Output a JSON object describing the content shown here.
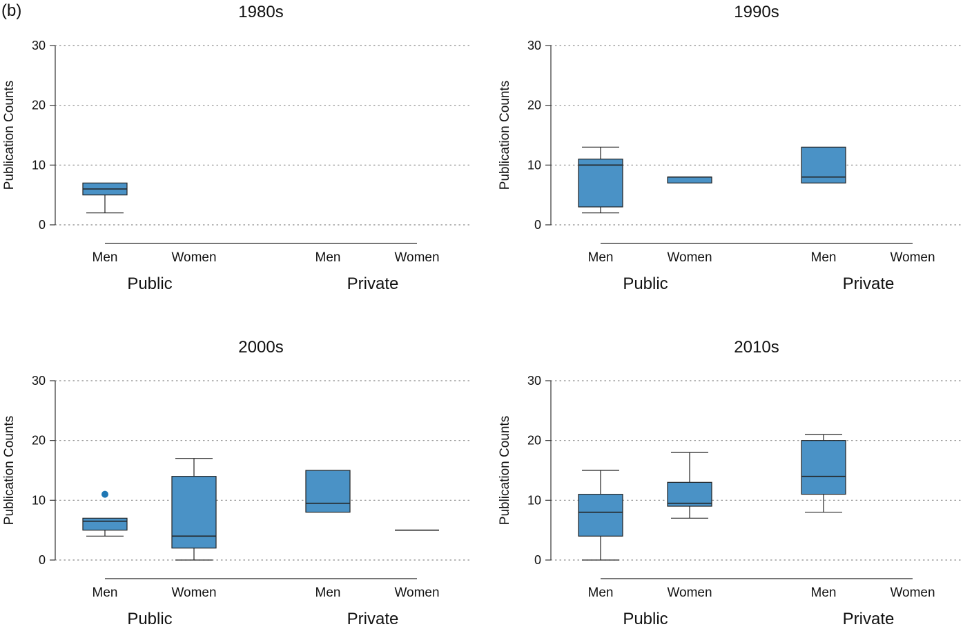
{
  "figure": {
    "panel_label": "(b)"
  },
  "style": {
    "box_fill": "#4a92c6",
    "box_stroke": "#222222",
    "outlier_color": "#1f77b4",
    "grid_color": "#888888",
    "axis_color": "#333333",
    "group_line_color": "#777777"
  },
  "chart_data": [
    {
      "type": "box",
      "title": "1980s",
      "ylabel": "Publication Counts",
      "ylim": [
        0,
        30
      ],
      "yticks": [
        0,
        10,
        20,
        30
      ],
      "grid": "horizontal dotted",
      "categories": [
        "Men",
        "Women",
        "Men",
        "Women"
      ],
      "groups": [
        "Public",
        "Private"
      ],
      "boxes": [
        {
          "category": "Men",
          "group": "Public",
          "whisker_low": 2,
          "q1": 5,
          "median": 6,
          "q3": 7,
          "whisker_high": 7,
          "outliers": []
        }
      ]
    },
    {
      "type": "box",
      "title": "1990s",
      "ylabel": "Publication Counts",
      "ylim": [
        0,
        30
      ],
      "yticks": [
        0,
        10,
        20,
        30
      ],
      "grid": "horizontal dotted",
      "categories": [
        "Men",
        "Women",
        "Men",
        "Women"
      ],
      "groups": [
        "Public",
        "Private"
      ],
      "boxes": [
        {
          "category": "Men",
          "group": "Public",
          "whisker_low": 2,
          "q1": 3,
          "median": 10,
          "q3": 11,
          "whisker_high": 13,
          "outliers": []
        },
        {
          "category": "Women",
          "group": "Public",
          "whisker_low": 7,
          "q1": 7,
          "median": 8,
          "q3": 8,
          "whisker_high": 8,
          "outliers": []
        },
        {
          "category": "Men",
          "group": "Private",
          "whisker_low": 7,
          "q1": 7,
          "median": 8,
          "q3": 13,
          "whisker_high": 13,
          "outliers": []
        }
      ]
    },
    {
      "type": "box",
      "title": "2000s",
      "ylabel": "Publication Counts",
      "ylim": [
        0,
        30
      ],
      "yticks": [
        0,
        10,
        20,
        30
      ],
      "grid": "horizontal dotted",
      "categories": [
        "Men",
        "Women",
        "Men",
        "Women"
      ],
      "groups": [
        "Public",
        "Private"
      ],
      "boxes": [
        {
          "category": "Men",
          "group": "Public",
          "whisker_low": 4,
          "q1": 5,
          "median": 6.5,
          "q3": 7,
          "whisker_high": 7,
          "outliers": [
            11
          ]
        },
        {
          "category": "Women",
          "group": "Public",
          "whisker_low": 0,
          "q1": 2,
          "median": 4,
          "q3": 14,
          "whisker_high": 17,
          "outliers": []
        },
        {
          "category": "Men",
          "group": "Private",
          "whisker_low": 8,
          "q1": 8,
          "median": 9.5,
          "q3": 15,
          "whisker_high": 15,
          "outliers": []
        },
        {
          "category": "Women",
          "group": "Private",
          "whisker_low": 5,
          "q1": 5,
          "median": 5,
          "q3": 5,
          "whisker_high": 5,
          "outliers": []
        }
      ]
    },
    {
      "type": "box",
      "title": "2010s",
      "ylabel": "Publication Counts",
      "ylim": [
        0,
        30
      ],
      "yticks": [
        0,
        10,
        20,
        30
      ],
      "grid": "horizontal dotted",
      "categories": [
        "Men",
        "Women",
        "Men",
        "Women"
      ],
      "groups": [
        "Public",
        "Private"
      ],
      "boxes": [
        {
          "category": "Men",
          "group": "Public",
          "whisker_low": 0,
          "q1": 4,
          "median": 8,
          "q3": 11,
          "whisker_high": 15,
          "outliers": []
        },
        {
          "category": "Women",
          "group": "Public",
          "whisker_low": 7,
          "q1": 9,
          "median": 9.5,
          "q3": 13,
          "whisker_high": 18,
          "outliers": []
        },
        {
          "category": "Men",
          "group": "Private",
          "whisker_low": 8,
          "q1": 11,
          "median": 14,
          "q3": 20,
          "whisker_high": 21,
          "outliers": []
        }
      ]
    }
  ]
}
